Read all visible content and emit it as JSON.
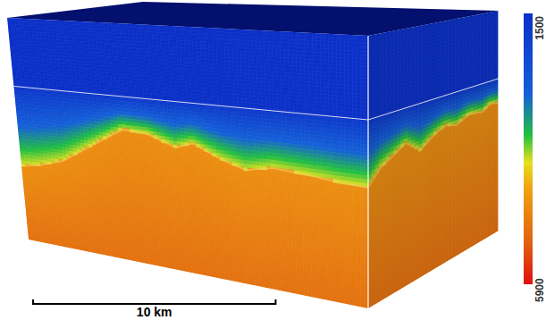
{
  "chart_data": {
    "type": "volume",
    "xlim": [
      0,
      14
    ],
    "ylim": [
      0,
      8
    ],
    "zlim": [
      0,
      6
    ],
    "tick_labels": false,
    "seafloor_depth": 1.85,
    "basement_front": {
      "x": [
        0,
        0.7,
        1.7,
        3.1,
        4.2,
        5.2,
        6.3,
        7.0,
        8.1,
        9.1,
        10.2,
        11.6,
        13.0,
        14
      ],
      "depth": [
        4.0,
        3.92,
        3.71,
        3.13,
        2.69,
        2.73,
        2.98,
        2.83,
        3.13,
        3.31,
        3.18,
        3.24,
        3.32,
        3.34
      ]
    },
    "basement_side": {
      "y": [
        0,
        0.8,
        1.5,
        2.3,
        3.2,
        3.8,
        4.2,
        4.8,
        5.4,
        6.2,
        7.0,
        7.5,
        8
      ],
      "depth": [
        3.34,
        3.0,
        2.86,
        2.67,
        2.97,
        2.8,
        2.69,
        2.6,
        2.69,
        2.53,
        2.6,
        2.45,
        2.51
      ]
    },
    "velocity": {
      "water": 1500,
      "sediment_top": 1700,
      "sediment_bottom": 3900,
      "basement_top": 4600,
      "basement_bottom": 5000
    },
    "colorbar": {
      "range": [
        1500,
        5900
      ],
      "ticks": [
        1500,
        5900
      ]
    },
    "scale_bar": {
      "value": 10,
      "label": "10 km"
    }
  }
}
